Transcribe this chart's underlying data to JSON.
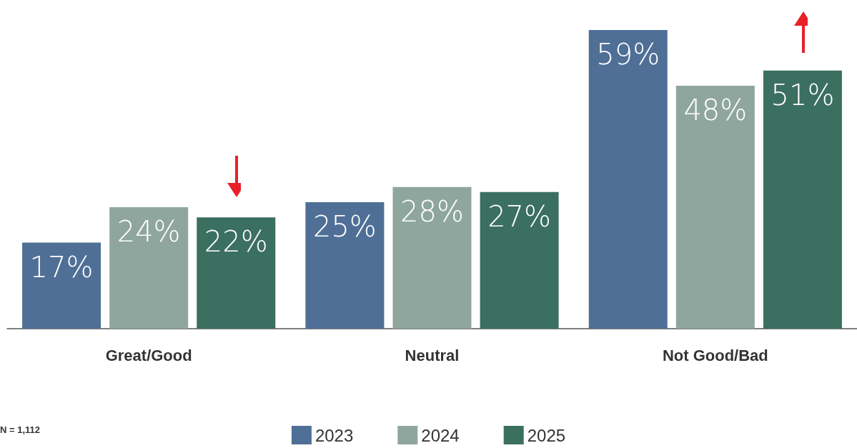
{
  "chart_data": {
    "type": "bar",
    "categories": [
      "Great/Good",
      "Neutral",
      "Not Good/Bad"
    ],
    "series": [
      {
        "name": "2023",
        "color": "#4f6f96",
        "values": [
          17,
          25,
          59
        ],
        "value_labels": [
          "17%",
          "25%",
          "59%"
        ]
      },
      {
        "name": "2024",
        "color": "#8fa69e",
        "values": [
          24,
          28,
          48
        ],
        "value_labels": [
          "24%",
          "28%",
          "48%"
        ]
      },
      {
        "name": "2025",
        "color": "#3b6f60",
        "values": [
          22,
          27,
          51
        ],
        "value_labels": [
          "22%",
          "27%",
          "51%"
        ]
      }
    ],
    "legend": "bottom",
    "tick_labels": "x",
    "annotations": [
      "N = 1,112"
    ]
  }
}
